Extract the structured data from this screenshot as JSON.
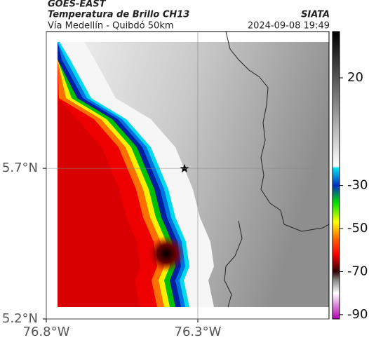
{
  "header": {
    "agency": "GOES-EAST",
    "title": "Temperatura de Brillo CH13",
    "subtitle": "Vía Medellín - Quibdó 50km",
    "source": "SIATA",
    "datetime": "2024-09-08 19:49"
  },
  "map": {
    "xlim": [
      -76.8,
      -75.867
    ],
    "ylim": [
      5.2,
      6.154
    ],
    "xticks": [
      {
        "value": -76.8,
        "label": "76.8°W"
      },
      {
        "value": -76.3,
        "label": "76.3°W"
      }
    ],
    "yticks": [
      {
        "value": 5.2,
        "label": "5.2°N"
      },
      {
        "value": 5.7,
        "label": "5.7°N"
      }
    ],
    "grid": true
  },
  "colorbar": {
    "lim": [
      -92,
      41.5
    ],
    "ticks": [
      20,
      -30,
      -50,
      -70,
      -90
    ],
    "colormap": [
      {
        "value": 41.5,
        "color": "#000000"
      },
      {
        "value": 20,
        "color": "#555555"
      },
      {
        "value": -21,
        "color": "#ffffff"
      },
      {
        "value": -22,
        "color": "#00e0f0"
      },
      {
        "value": -30,
        "color": "#0030c0"
      },
      {
        "value": -38,
        "color": "#00e000"
      },
      {
        "value": -47,
        "color": "#ffff00"
      },
      {
        "value": -55,
        "color": "#ff6000"
      },
      {
        "value": -62,
        "color": "#ff0000"
      },
      {
        "value": -70,
        "color": "#300000"
      },
      {
        "value": -74,
        "color": "#888888"
      },
      {
        "value": -80,
        "color": "#ffffff"
      },
      {
        "value": -92,
        "color": "#b000b0"
      }
    ]
  }
}
